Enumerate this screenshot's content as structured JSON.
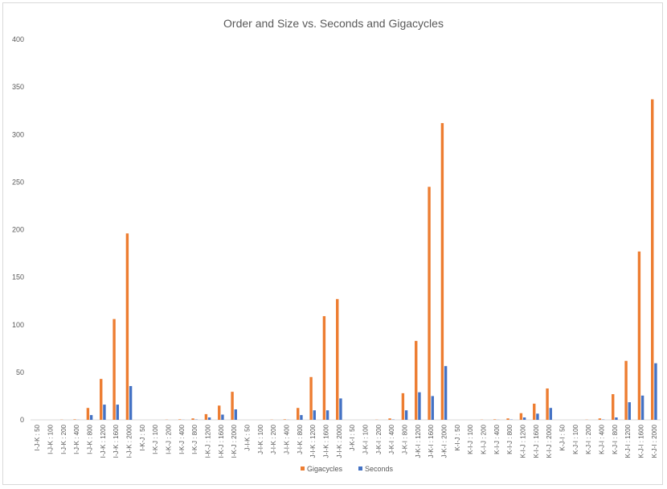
{
  "chart_data": {
    "type": "bar",
    "title": "Order and Size vs. Seconds and Gigacycles",
    "xlabel": "",
    "ylabel": "",
    "ylim": [
      0,
      400
    ],
    "yticks": [
      0,
      50,
      100,
      150,
      200,
      250,
      300,
      350,
      400
    ],
    "grid": false,
    "legend_position": "bottom",
    "categories": [
      "I-J-K : 50",
      "I-J-K : 100",
      "I-J-K : 200",
      "I-J-K : 400",
      "I-J-K : 800",
      "I-J-K : 1200",
      "I-J-K : 1600",
      "I-J-K : 2000",
      "I-K-J : 50",
      "I-K-J : 100",
      "I-K-J : 200",
      "I-K-J : 400",
      "I-K-J : 800",
      "I-K-J : 1200",
      "I-K-J : 1600",
      "I-K-J : 2000",
      "J-I-K : 50",
      "J-I-K : 100",
      "J-I-K : 200",
      "J-I-K : 400",
      "J-I-K : 800",
      "J-I-K : 1200",
      "J-I-K : 1600",
      "J-I-K : 2000",
      "J-K-I : 50",
      "J-K-I : 100",
      "J-K-I : 200",
      "J-K-I : 400",
      "J-K-I : 800",
      "J-K-I : 1200",
      "J-K-I : 1600",
      "J-K-I : 2000",
      "K-I-J : 50",
      "K-I-J : 100",
      "K-I-J : 200",
      "K-I-J : 400",
      "K-I-J : 800",
      "K-I-J : 1200",
      "K-I-J : 1600",
      "K-I-J : 2000",
      "K-J-I : 50",
      "K-J-I : 100",
      "K-J-I : 200",
      "K-J-I : 400",
      "K-J-I : 800",
      "K-J-I : 1200",
      "K-J-I : 1600",
      "K-J-I : 2000"
    ],
    "series": [
      {
        "name": "Gigacycles",
        "color": "#ed7d31",
        "values": [
          0,
          0,
          0.2,
          0.5,
          12.5,
          43,
          106,
          196,
          0,
          0,
          0.2,
          0.5,
          1.5,
          6,
          15,
          29.5,
          0,
          0,
          0.2,
          0.5,
          12.5,
          45,
          109,
          127,
          0,
          0,
          0.2,
          1.5,
          28,
          83,
          245,
          312,
          0,
          0,
          0.2,
          0.5,
          1.5,
          7,
          17,
          33,
          0,
          0,
          0.2,
          1.5,
          27,
          62,
          177,
          337
        ]
      },
      {
        "name": "Seconds",
        "color": "#4472c4",
        "values": [
          0,
          0,
          0,
          0.1,
          5,
          16,
          16,
          35.5,
          0,
          0,
          0,
          0.1,
          0.3,
          2.5,
          5.5,
          11,
          0,
          0,
          0,
          0.1,
          5,
          10,
          10,
          22.5,
          0,
          0,
          0,
          0.3,
          10,
          29,
          25,
          56.5,
          0,
          0,
          0,
          0.1,
          0.3,
          2.5,
          6.5,
          12.5,
          0,
          0,
          0,
          0.3,
          2.5,
          18.5,
          25.5,
          59.5
        ]
      }
    ]
  }
}
